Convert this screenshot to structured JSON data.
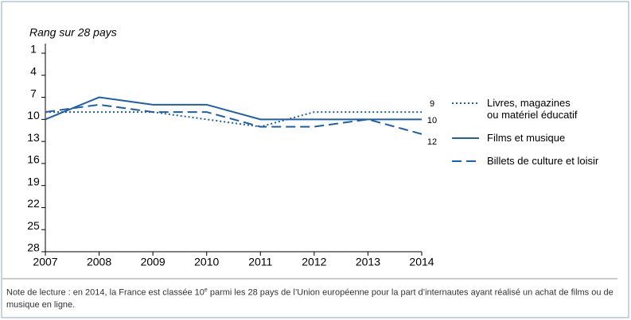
{
  "chart_data": {
    "type": "line",
    "y_label": "Rang sur 28 pays",
    "categories": [
      "2007",
      "2008",
      "2009",
      "2010",
      "2011",
      "2012",
      "2013",
      "2014"
    ],
    "series": [
      {
        "name": "Livres, magazines\nou matériel éducatif",
        "color": "#1f5fa8",
        "dash": "dotted",
        "values": [
          9,
          9,
          9,
          10,
          11,
          9,
          9,
          9
        ]
      },
      {
        "name": "Films et musique",
        "color": "#1f5fa8",
        "dash": "solid",
        "values": [
          10,
          7,
          8,
          8,
          10,
          10,
          10,
          10
        ]
      },
      {
        "name": "Billets de culture et loisir",
        "color": "#1f5fa8",
        "dash": "dashed",
        "values": [
          9,
          8,
          9,
          9,
          11,
          11,
          10,
          12
        ]
      }
    ],
    "ylim": [
      1,
      28
    ],
    "y_inverted": true,
    "yticks": [
      1,
      4,
      7,
      10,
      13,
      16,
      19,
      22,
      25,
      28
    ],
    "legend": "right",
    "note": [
      "Note de lecture : en 2014, la France est classée 10",
      "e",
      " parmi les 28 pays de l’Union européenne pour la part d’internautes ayant réalisé un achat de films ou de musique en ligne."
    ]
  }
}
